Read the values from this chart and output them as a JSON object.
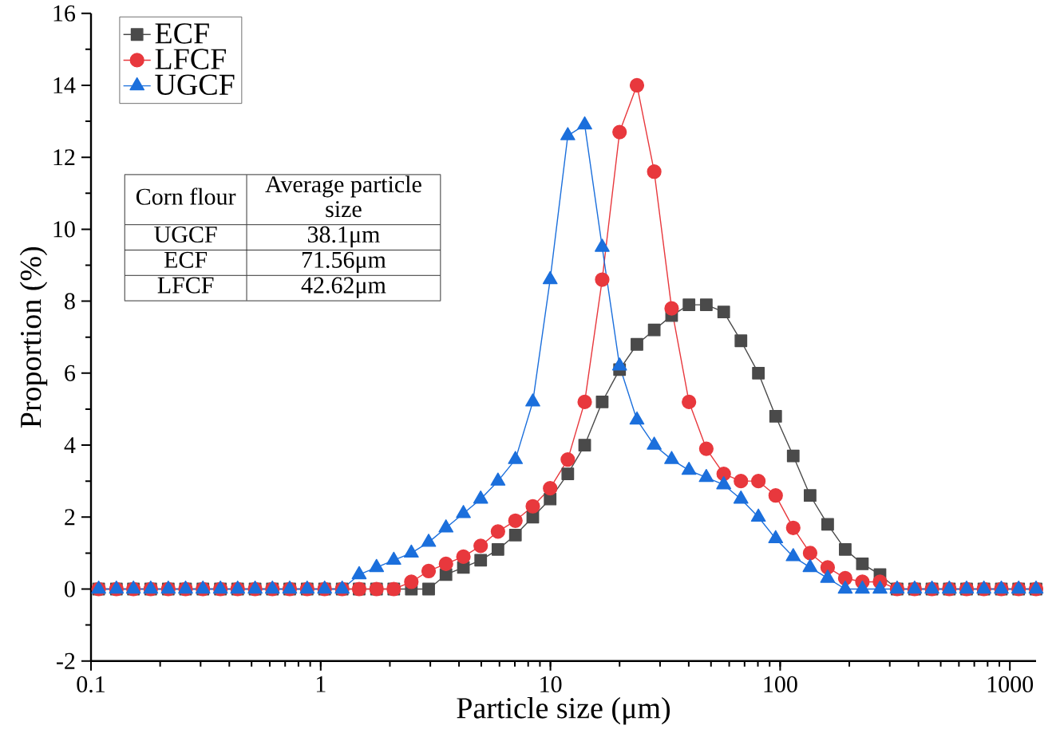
{
  "chart_data": {
    "type": "line",
    "xlabel": "Particle size (μm)",
    "ylabel": "Proportion (%)",
    "log": "x",
    "legend": "top left",
    "line_style": "solid",
    "xlim": [
      0.1,
      1300
    ],
    "ylim": [
      -2,
      16
    ],
    "xticks": [
      0.1,
      1,
      10,
      100,
      1000
    ],
    "yticks": [
      -2,
      0,
      2,
      4,
      6,
      8,
      10,
      12,
      14,
      16
    ],
    "x": [
      0.108,
      0.129,
      0.153,
      0.182,
      0.217,
      0.258,
      0.307,
      0.366,
      0.435,
      0.518,
      0.616,
      0.733,
      0.873,
      1.04,
      1.24,
      1.47,
      1.75,
      2.08,
      2.48,
      2.95,
      3.51,
      4.18,
      4.97,
      5.91,
      7.04,
      8.38,
      9.97,
      11.9,
      14.1,
      16.8,
      20.0,
      23.8,
      28.3,
      33.7,
      40.1,
      47.7,
      56.8,
      67.5,
      80.4,
      95.6,
      114,
      135,
      161,
      192,
      228,
      272,
      323,
      385,
      458,
      545,
      648,
      771,
      918,
      1092,
      1300
    ],
    "series": [
      {
        "name": "ECF",
        "color": "#4a4a4a",
        "marker": "square",
        "values": [
          0,
          0,
          0,
          0,
          0,
          0,
          0,
          0,
          0,
          0,
          0,
          0,
          0,
          0,
          0,
          0,
          0,
          0,
          0,
          0,
          0.4,
          0.6,
          0.8,
          1.1,
          1.5,
          2.0,
          2.5,
          3.2,
          4.0,
          5.2,
          6.1,
          6.8,
          7.2,
          7.6,
          7.9,
          7.9,
          7.7,
          6.9,
          6.0,
          4.8,
          3.7,
          2.6,
          1.8,
          1.1,
          0.7,
          0.4,
          0,
          0,
          0,
          0,
          0,
          0,
          0,
          0,
          0
        ]
      },
      {
        "name": "LFCF",
        "color": "#e8383d",
        "marker": "circle",
        "values": [
          0,
          0,
          0,
          0,
          0,
          0,
          0,
          0,
          0,
          0,
          0,
          0,
          0,
          0,
          0,
          0,
          0,
          0,
          0.2,
          0.5,
          0.7,
          0.9,
          1.2,
          1.6,
          1.9,
          2.3,
          2.8,
          3.6,
          5.2,
          8.6,
          12.7,
          14.0,
          11.6,
          7.8,
          5.2,
          3.9,
          3.2,
          3.0,
          3.0,
          2.6,
          1.7,
          1.0,
          0.6,
          0.3,
          0.2,
          0.2,
          0,
          0,
          0,
          0,
          0,
          0,
          0,
          0,
          0
        ]
      },
      {
        "name": "UGCF",
        "color": "#1b6fdc",
        "marker": "triangle",
        "values": [
          0,
          0,
          0,
          0,
          0,
          0,
          0,
          0,
          0,
          0,
          0,
          0,
          0,
          0,
          0,
          0.4,
          0.6,
          0.8,
          1.0,
          1.3,
          1.7,
          2.1,
          2.5,
          3.0,
          3.6,
          5.2,
          8.6,
          12.6,
          12.9,
          9.5,
          6.2,
          4.7,
          4.0,
          3.6,
          3.3,
          3.1,
          2.9,
          2.5,
          2.0,
          1.4,
          0.9,
          0.6,
          0.3,
          0,
          0,
          0,
          0,
          0,
          0,
          0,
          0,
          0,
          0,
          0,
          0
        ]
      }
    ],
    "annotations": [
      "Corn flour",
      "Average particle size",
      "UGCF",
      "38.1μm",
      "ECF",
      "71.56μm",
      "LFCF",
      "42.62μm"
    ]
  }
}
